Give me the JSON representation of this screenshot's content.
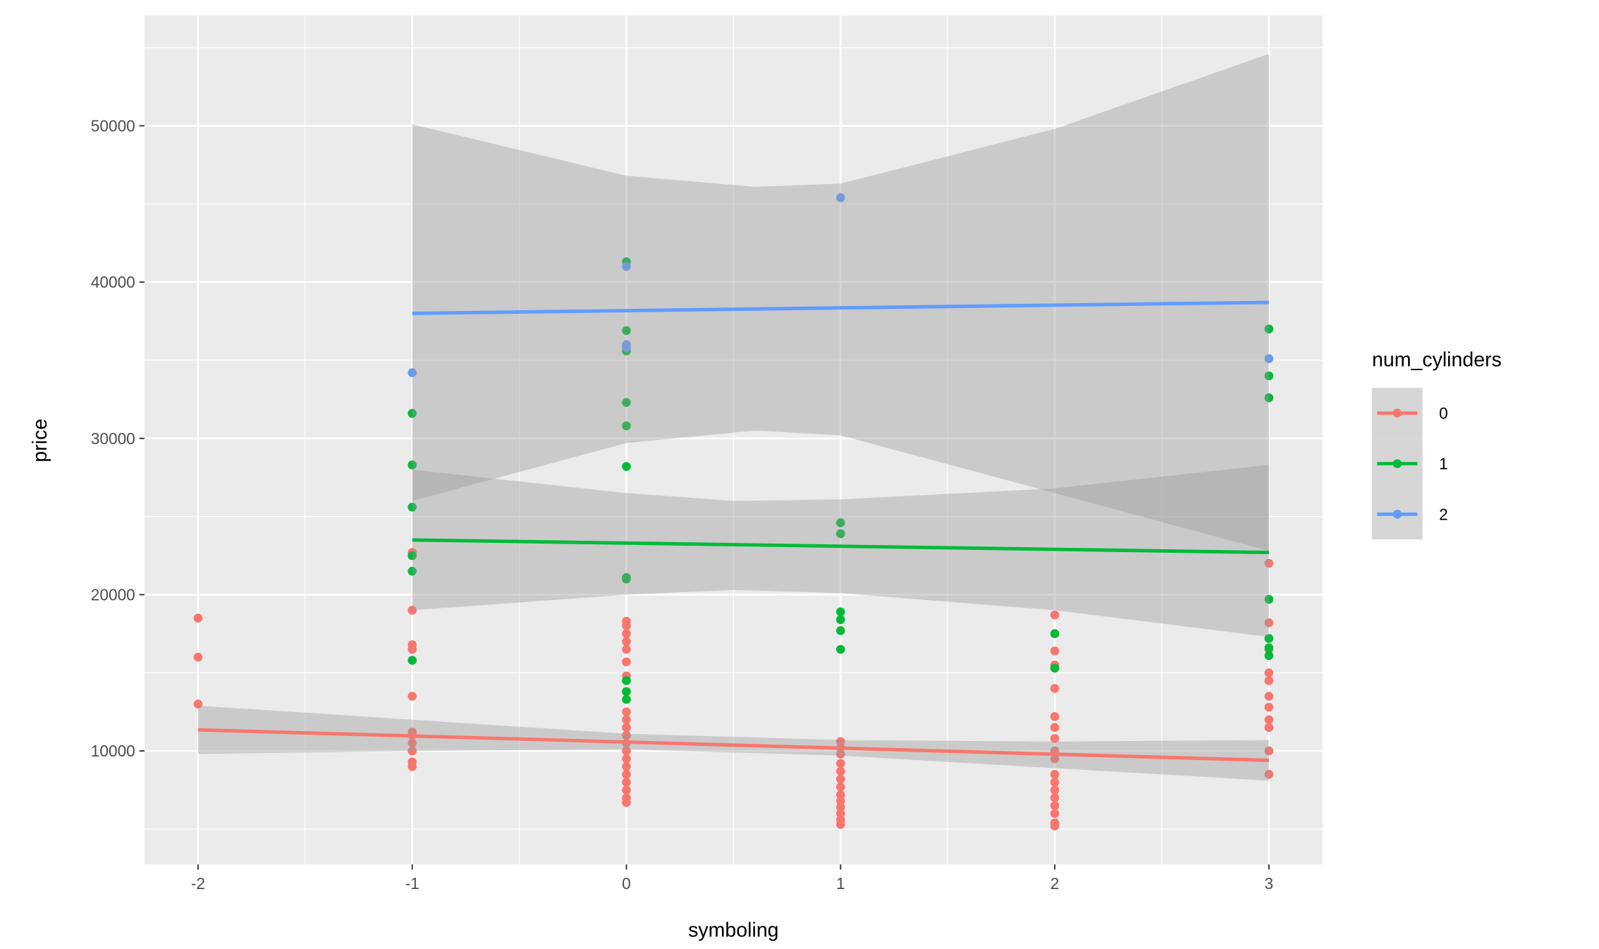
{
  "chart_data": {
    "type": "scatter",
    "x_label": "symboling",
    "y_label": "price",
    "legend_title": "num_cylinders",
    "legend_position": "right",
    "grid": true,
    "panel_color": "#ebebeb",
    "band_color": "#999999",
    "xlim": [
      -2.25,
      3.25
    ],
    "ylim": [
      2740,
      57060
    ],
    "xticks": [
      -2,
      -1,
      0,
      1,
      2,
      3
    ],
    "yticks": [
      10000,
      20000,
      30000,
      40000,
      50000
    ],
    "x_minor_ticks": [
      -1.5,
      -0.5,
      0.5,
      1.5,
      2.5
    ],
    "y_minor_ticks": [
      5000,
      15000,
      25000,
      35000,
      45000,
      55000
    ],
    "series": [
      {
        "name": "0",
        "color": "#F8766D",
        "x": [
          -2,
          -2,
          -2,
          -1,
          -1,
          -1,
          -1,
          -1,
          -1,
          -1,
          -1,
          -1,
          -1,
          -1,
          -1,
          -1,
          0,
          0,
          0,
          0,
          0,
          0,
          0,
          0,
          0,
          0,
          0,
          0,
          0,
          0,
          0,
          0,
          0,
          0,
          0,
          0,
          0,
          1,
          1,
          1,
          1,
          1,
          1,
          1,
          1,
          1,
          1,
          1,
          1,
          1,
          2,
          2,
          2,
          2,
          2,
          2,
          2,
          2,
          2,
          2,
          2,
          2,
          2,
          2,
          2,
          2,
          2,
          2,
          3,
          3,
          3,
          3,
          3,
          3,
          3,
          3,
          3,
          3,
          3
        ],
        "values": [
          18500,
          16000,
          13000,
          22700,
          22500,
          19000,
          16800,
          16500,
          15800,
          13500,
          11200,
          11000,
          10500,
          10000,
          9300,
          9000,
          18300,
          18000,
          17500,
          17000,
          16500,
          15700,
          14800,
          13800,
          12500,
          12000,
          11500,
          11000,
          10500,
          10000,
          9500,
          9000,
          8500,
          8000,
          7500,
          7000,
          6700,
          10600,
          10200,
          9800,
          9200,
          8700,
          8200,
          7700,
          7200,
          6800,
          6400,
          6000,
          5600,
          5300,
          18700,
          17500,
          16400,
          15500,
          14000,
          12200,
          11500,
          10800,
          10000,
          9500,
          8500,
          8000,
          7500,
          7000,
          6500,
          6000,
          5400,
          5200,
          22000,
          18200,
          16500,
          15000,
          14500,
          13500,
          12800,
          12000,
          11500,
          10000,
          8500
        ],
        "fit_x": [
          -2,
          3
        ],
        "fit_values": [
          11350,
          9400
        ],
        "band_x": [
          -2,
          -1,
          0,
          1,
          2,
          3
        ],
        "band_lower": [
          9800,
          10000,
          10100,
          9700,
          8900,
          8100
        ],
        "band_upper": [
          12900,
          12000,
          11100,
          10700,
          10600,
          10700
        ]
      },
      {
        "name": "1",
        "color": "#00BA38",
        "x": [
          -1,
          -1,
          -1,
          -1,
          -1,
          -1,
          0,
          0,
          0,
          0,
          0,
          0,
          0,
          0,
          0,
          0,
          0,
          1,
          1,
          1,
          1,
          1,
          1,
          2,
          2,
          3,
          3,
          3,
          3,
          3,
          3,
          3
        ],
        "values": [
          31600,
          28300,
          25600,
          22500,
          21500,
          15800,
          41300,
          36900,
          35600,
          32300,
          30800,
          28200,
          21100,
          21000,
          14500,
          13800,
          13300,
          24600,
          23900,
          18900,
          18400,
          17700,
          16500,
          17500,
          15300,
          37000,
          34000,
          32600,
          19700,
          17200,
          16600,
          16100
        ],
        "fit_x": [
          -1,
          3
        ],
        "fit_values": [
          23500,
          22700
        ],
        "band_x": [
          -1,
          0,
          0.5,
          1,
          2,
          3
        ],
        "band_lower": [
          19000,
          20000,
          20300,
          20100,
          19000,
          17300
        ],
        "band_upper": [
          28000,
          26500,
          26000,
          26100,
          26800,
          28300
        ]
      },
      {
        "name": "2",
        "color": "#619CFF",
        "x": [
          -1,
          0,
          0,
          0,
          1,
          3
        ],
        "values": [
          34200,
          41000,
          36000,
          35800,
          45400,
          35100
        ],
        "fit_x": [
          -1,
          3
        ],
        "fit_values": [
          38000,
          38700
        ],
        "band_x": [
          -1,
          0,
          0.6,
          1,
          2,
          3
        ],
        "band_lower": [
          26000,
          29700,
          30500,
          30200,
          26500,
          22800
        ],
        "band_upper": [
          50100,
          46800,
          46100,
          46300,
          49800,
          54600
        ]
      }
    ]
  }
}
